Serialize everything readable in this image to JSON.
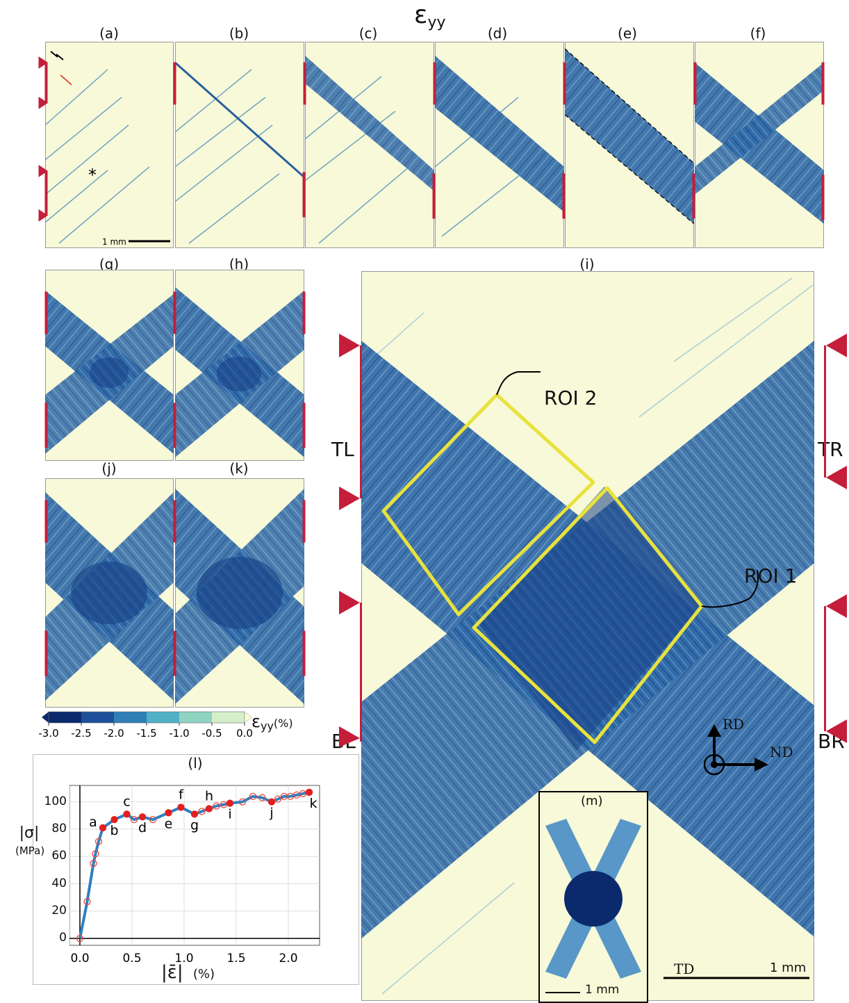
{
  "figure_title": "ε",
  "figure_title_sub": "yy",
  "panels": {
    "a": "(a)",
    "b": "(b)",
    "c": "(c)",
    "d": "(d)",
    "e": "(e)",
    "f": "(f)",
    "g": "(g)",
    "h": "(h)",
    "i": "(i)",
    "j": "(j)",
    "k": "(k)",
    "l": "(l)",
    "m": "(m)"
  },
  "scale_bar_small": "1 mm",
  "scale_bar_large": "1 mm",
  "scale_bar_inset": "1 mm",
  "roi_labels": {
    "roi1": "ROI 1",
    "roi2": "ROI 2"
  },
  "grip_labels": {
    "tl": "TL",
    "tr": "TR",
    "bl": "BL",
    "br": "BR"
  },
  "axes_triad": {
    "rd": "RD",
    "nd": "ND",
    "td": "TD"
  },
  "colorbar": {
    "label_main": "ε",
    "label_sub": "yy",
    "label_unit": "(%)",
    "ticks": [
      "-3.0",
      "-2.5",
      "-2.0",
      "-1.5",
      "-1.0",
      "-0.5",
      "0.0"
    ],
    "colors": [
      "#0b2a6e",
      "#1e4f9a",
      "#2f7fb6",
      "#4fb0c6",
      "#8fd3c1",
      "#d5efc9",
      "#fdfdd8"
    ]
  },
  "palette": {
    "background": "#f7f9d8",
    "band": "#2f6aa8",
    "band_dark": "#173f86",
    "grip": "#c41e3a",
    "roi": "#e8e23c"
  },
  "chart_data": {
    "type": "line",
    "title": "(l)",
    "xlabel": "|ε̄|",
    "xlabel_unit": "(%)",
    "ylabel": "|σ|",
    "ylabel_unit": "(MPa)",
    "xlim": [
      -0.1,
      2.3
    ],
    "ylim": [
      -5,
      112
    ],
    "xticks": [
      "0.0",
      "0.5",
      "1.0",
      "1.5",
      "2.0"
    ],
    "xtick_values": [
      0.0,
      0.5,
      1.0,
      1.5,
      2.0
    ],
    "yticks": [
      "0",
      "20",
      "40",
      "60",
      "80",
      "100"
    ],
    "ytick_values": [
      0,
      20,
      40,
      60,
      80,
      100
    ],
    "grid": true,
    "line_color": "#2f7fc1",
    "points": [
      {
        "x": 0.0,
        "y": 0
      },
      {
        "x": 0.07,
        "y": 27
      },
      {
        "x": 0.13,
        "y": 55
      },
      {
        "x": 0.15,
        "y": 62
      },
      {
        "x": 0.18,
        "y": 71
      },
      {
        "x": 0.22,
        "y": 81
      },
      {
        "x": 0.33,
        "y": 87
      },
      {
        "x": 0.45,
        "y": 91
      },
      {
        "x": 0.52,
        "y": 87
      },
      {
        "x": 0.6,
        "y": 89
      },
      {
        "x": 0.7,
        "y": 87
      },
      {
        "x": 0.85,
        "y": 92
      },
      {
        "x": 0.97,
        "y": 96
      },
      {
        "x": 1.1,
        "y": 91
      },
      {
        "x": 1.17,
        "y": 93
      },
      {
        "x": 1.24,
        "y": 95
      },
      {
        "x": 1.31,
        "y": 97
      },
      {
        "x": 1.38,
        "y": 98
      },
      {
        "x": 1.44,
        "y": 99
      },
      {
        "x": 1.56,
        "y": 100
      },
      {
        "x": 1.66,
        "y": 104
      },
      {
        "x": 1.75,
        "y": 103
      },
      {
        "x": 1.84,
        "y": 100
      },
      {
        "x": 1.9,
        "y": 102
      },
      {
        "x": 1.96,
        "y": 104
      },
      {
        "x": 2.02,
        "y": 104
      },
      {
        "x": 2.08,
        "y": 105
      },
      {
        "x": 2.14,
        "y": 106
      },
      {
        "x": 2.2,
        "y": 107
      }
    ],
    "highlighted": [
      {
        "label": "a",
        "x": 0.22,
        "y": 81
      },
      {
        "label": "b",
        "x": 0.33,
        "y": 87
      },
      {
        "label": "c",
        "x": 0.45,
        "y": 91
      },
      {
        "label": "d",
        "x": 0.6,
        "y": 89
      },
      {
        "label": "e",
        "x": 0.85,
        "y": 92
      },
      {
        "label": "f",
        "x": 0.97,
        "y": 96
      },
      {
        "label": "g",
        "x": 1.1,
        "y": 91
      },
      {
        "label": "h",
        "x": 1.24,
        "y": 95
      },
      {
        "label": "i",
        "x": 1.44,
        "y": 99
      },
      {
        "label": "j",
        "x": 1.84,
        "y": 100
      },
      {
        "label": "k",
        "x": 2.2,
        "y": 107
      }
    ]
  }
}
